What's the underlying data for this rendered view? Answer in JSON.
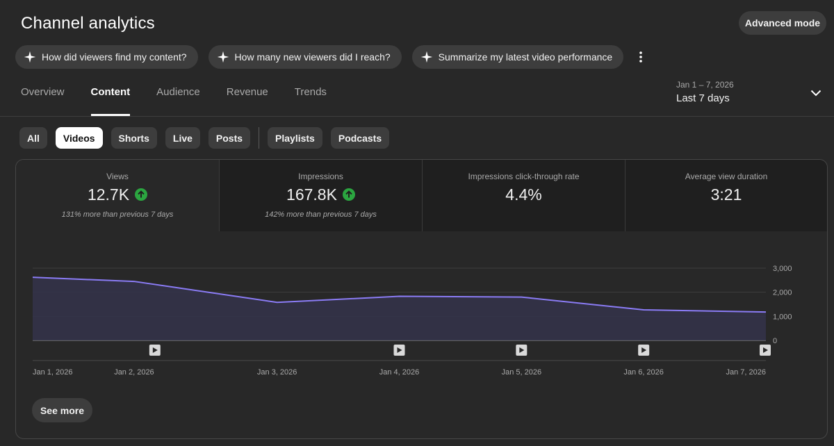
{
  "page": {
    "title": "Channel analytics"
  },
  "header": {
    "advanced_label": "Advanced mode"
  },
  "ai_chips": [
    "How did viewers find my content?",
    "How many new viewers did I reach?",
    "Summarize my latest video performance"
  ],
  "tabs": [
    "Overview",
    "Content",
    "Audience",
    "Revenue",
    "Trends"
  ],
  "active_tab": "Content",
  "date_range": {
    "range": "Jan 1 – 7, 2026",
    "label": "Last 7 days"
  },
  "filters": [
    "All",
    "Videos",
    "Shorts",
    "Live",
    "Posts",
    "Playlists",
    "Podcasts"
  ],
  "active_filter": "Videos",
  "metrics": [
    {
      "label": "Views",
      "value": "12.7K",
      "note": "131% more than previous 7 days"
    },
    {
      "label": "Impressions",
      "value": "167.8K",
      "note": "142% more than previous 7 days"
    },
    {
      "label": "Impressions click-through rate",
      "value": "4.4%"
    },
    {
      "label": "Average view duration",
      "value": "3:21"
    }
  ],
  "colors": {
    "line": "#8b7cf6",
    "area": "#34324a",
    "up": "#2ba640"
  },
  "chart_data": {
    "type": "area",
    "title": "Views",
    "x": [
      "Jan 1, 2026",
      "Jan 2, 2026",
      "Jan 3, 2026",
      "Jan 4, 2026",
      "Jan 5, 2026",
      "Jan 6, 2026",
      "Jan 7, 2026"
    ],
    "x_pos": [
      0,
      0.83,
      2,
      3,
      4,
      5,
      6
    ],
    "values": [
      2620,
      2450,
      1580,
      1830,
      1800,
      1270,
      1180
    ],
    "yticks": [
      "3,000",
      "2,000",
      "1,000",
      "0"
    ],
    "ytick_values": [
      3000,
      2000,
      1000,
      0
    ],
    "ylim": [
      0,
      3000
    ],
    "video_markers": [
      1,
      3,
      4,
      5,
      6
    ]
  },
  "see_more_label": "See more"
}
